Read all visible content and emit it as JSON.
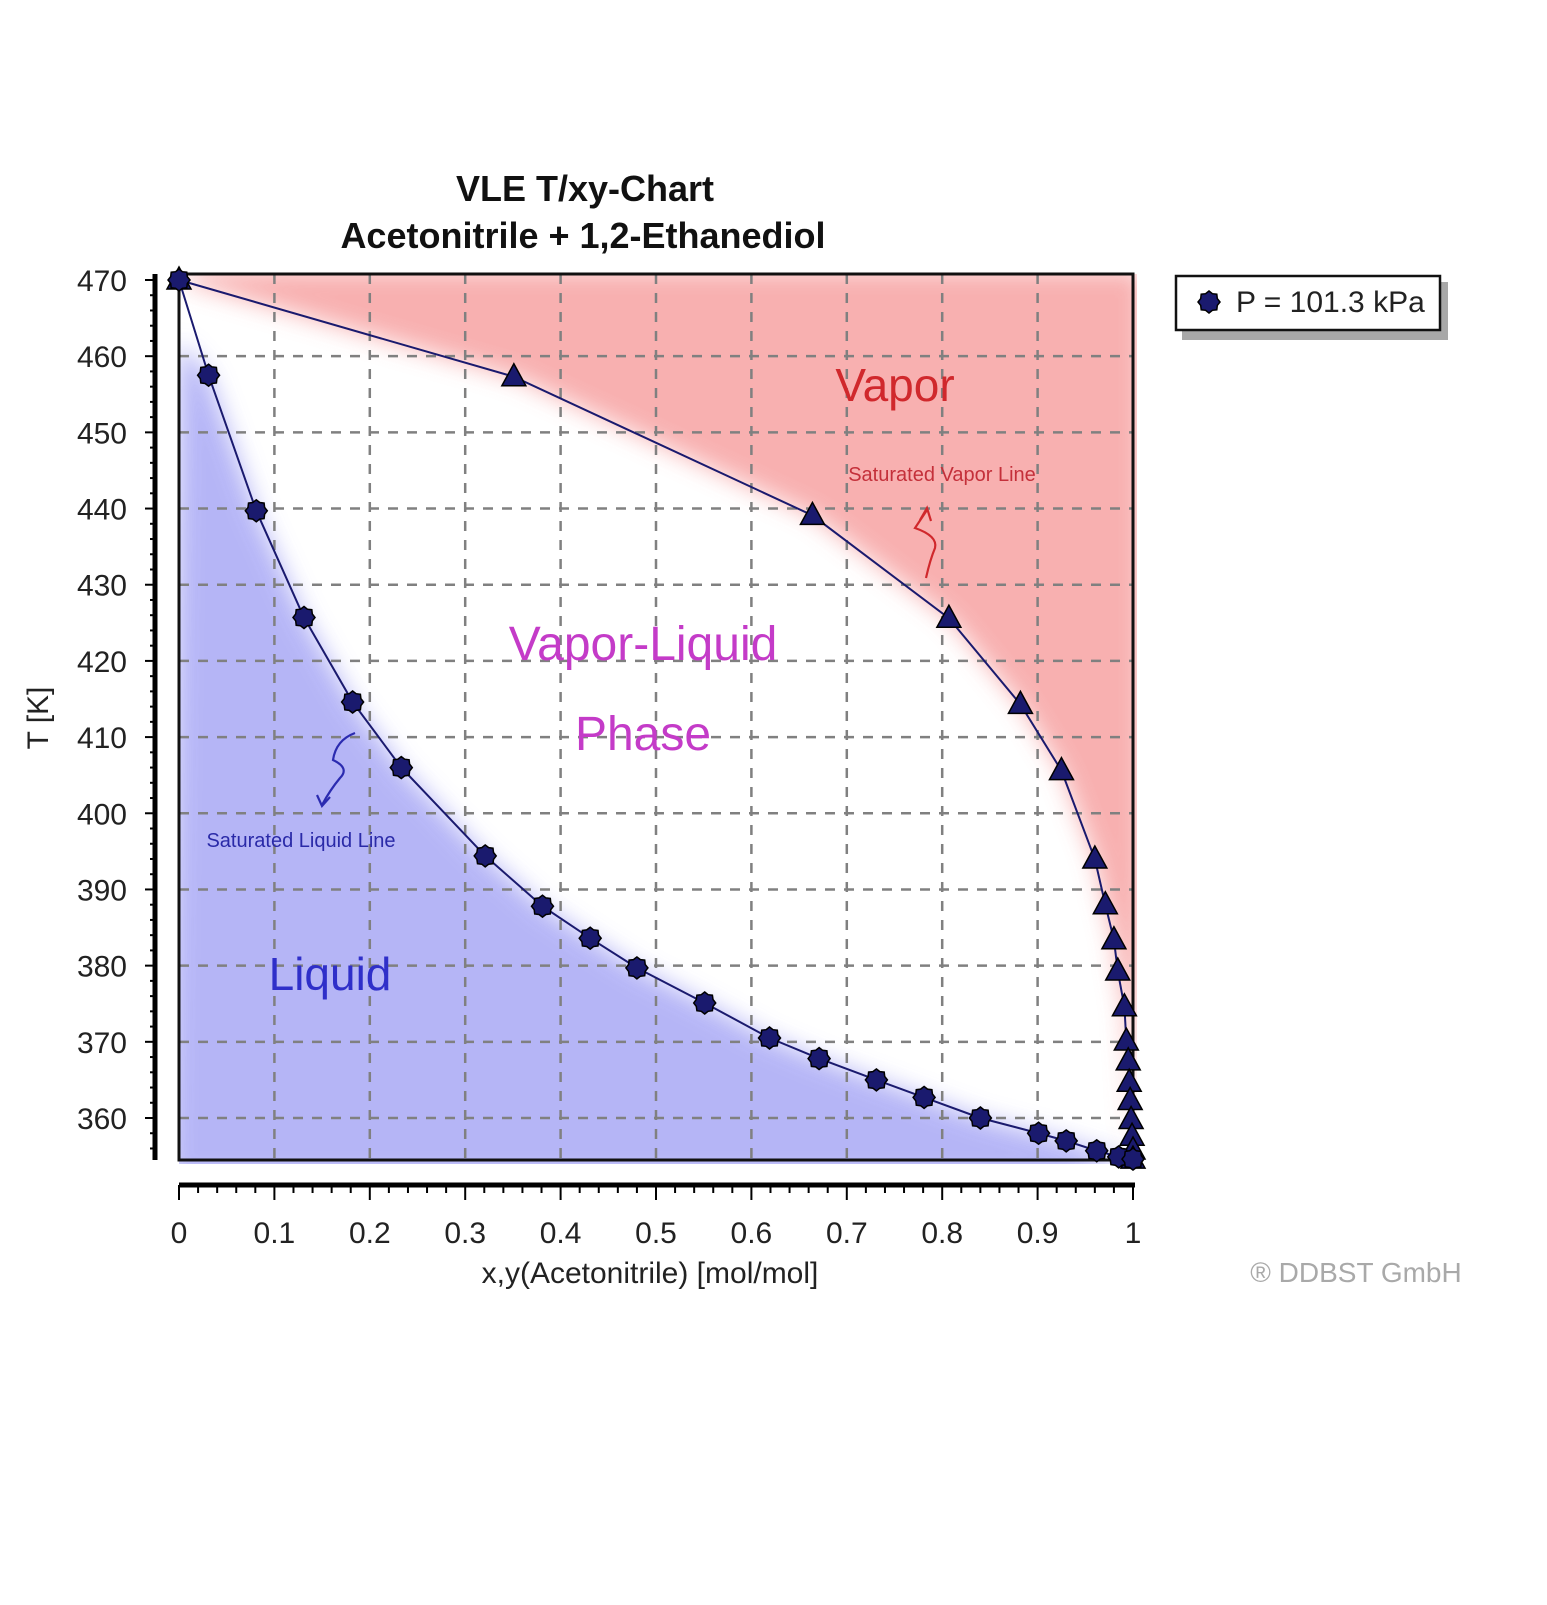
{
  "chart_data": {
    "type": "line",
    "title": "VLE T/xy-Chart",
    "subtitle": "Acetonitrile + 1,2-Ethanediol",
    "xlabel": "x,y(Acetonitrile) [mol/mol]",
    "ylabel": "T [K]",
    "xlim": [
      0,
      1
    ],
    "ylim": [
      354.5,
      470
    ],
    "x_ticks": [
      "0",
      "0.1",
      "0.2",
      "0.3",
      "0.4",
      "0.5",
      "0.6",
      "0.7",
      "0.8",
      "0.9",
      "1"
    ],
    "y_ticks": [
      "470",
      "460",
      "450",
      "440",
      "430",
      "420",
      "410",
      "400",
      "390",
      "380",
      "370",
      "360"
    ],
    "grid": true,
    "legend_position": "top-right outside",
    "legend": [
      "P = 101.3 kPa"
    ],
    "series": [
      {
        "name": "Saturated Liquid Line (x)",
        "marker": "circle",
        "color": "#1a1a6e",
        "x": [
          0.0,
          0.031,
          0.081,
          0.131,
          0.182,
          0.233,
          0.321,
          0.381,
          0.431,
          0.48,
          0.551,
          0.619,
          0.671,
          0.731,
          0.781,
          0.84,
          0.901,
          0.93,
          0.962,
          0.985,
          1.0
        ],
        "y": [
          470.0,
          457.5,
          439.7,
          425.7,
          414.6,
          406.0,
          394.4,
          387.8,
          383.6,
          379.7,
          375.1,
          370.5,
          367.8,
          365.0,
          362.7,
          360.0,
          358.0,
          357.0,
          355.7,
          354.9,
          354.6
        ]
      },
      {
        "name": "Saturated Vapor Line (y)",
        "marker": "triangle",
        "color": "#1a1a6e",
        "x": [
          0.0,
          0.351,
          0.664,
          0.807,
          0.882,
          0.925,
          0.96,
          0.971,
          0.98,
          0.984,
          0.991,
          0.993,
          0.995,
          0.996,
          0.997,
          0.998,
          0.999,
          1.0,
          1.0
        ],
        "y": [
          470.0,
          457.3,
          439.1,
          425.6,
          414.3,
          405.6,
          394.0,
          388.0,
          383.4,
          379.3,
          374.6,
          370.1,
          367.5,
          364.7,
          362.3,
          359.8,
          357.6,
          355.8,
          354.6
        ]
      }
    ],
    "annotations": [
      {
        "text": "Vapor",
        "region": "above dew curve",
        "color": "#d0282c"
      },
      {
        "text": "Saturated Vapor Line",
        "color": "#c4303a"
      },
      {
        "text": "Vapor-Liquid",
        "color": "#c43bc8"
      },
      {
        "text": "Phase",
        "color": "#c43bc8"
      },
      {
        "text": "Saturated Liquid Line",
        "color": "#2a2aa8"
      },
      {
        "text": "Liquid",
        "region": "below bubble curve",
        "color": "#2f2fc9"
      }
    ]
  },
  "chart": {
    "title_line1": "VLE T/xy-Chart",
    "title_line2": "Acetonitrile + 1,2-Ethanediol",
    "xlabel": "x,y(Acetonitrile) [mol/mol]",
    "ylabel": "T [K]",
    "legend_label": "P = 101.3 kPa",
    "copyright": "® DDBST GmbH",
    "labels": {
      "vapor": "Vapor",
      "sat_vapor": "Saturated Vapor Line",
      "vl_line1": "Vapor-Liquid",
      "vl_line2": "Phase",
      "sat_liquid": "Saturated Liquid Line",
      "liquid": "Liquid"
    },
    "colors": {
      "series": "#1a1a6e",
      "vapor_fill": "#f7a3a3",
      "liquid_fill": "#a9a9f5",
      "grid": "#808080",
      "vapor_text": "#d0282c",
      "vl_text": "#c43bc8",
      "liquid_text": "#2f2fc9"
    }
  }
}
